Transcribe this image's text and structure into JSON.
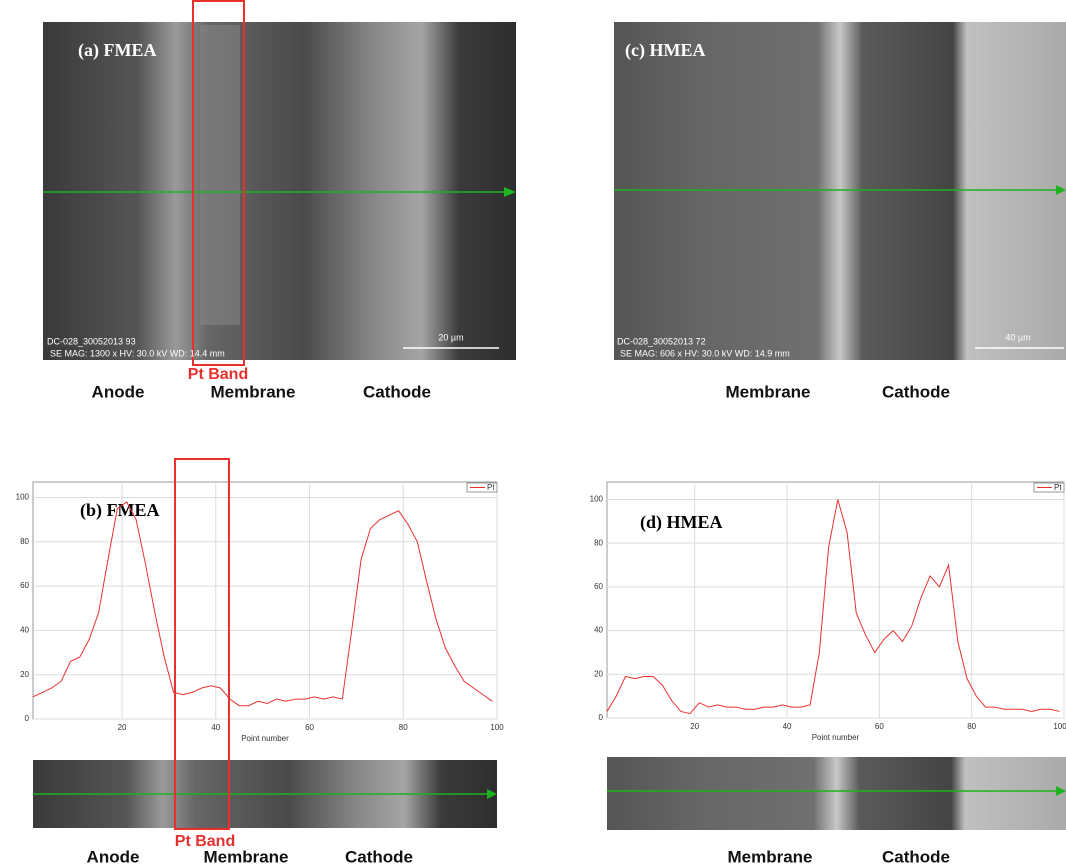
{
  "panels": [
    {
      "label": "(a) FMEA",
      "info": [
        "DC-028_30052013 93",
        "SE  MAG: 1300 x  HV: 30.0 kV  WD: 14.4 mm"
      ],
      "scale": "20 µm",
      "band": "Pt Band",
      "regions": [
        "Anode",
        "Membrane",
        "Cathode"
      ]
    },
    {
      "label": "(c) HMEA",
      "info": [
        "DC-028_30052013 72",
        "SE  MAG: 606 x  HV: 30.0 kV  WD: 14.9 mm"
      ],
      "scale": "40 µm",
      "regions": [
        "Membrane",
        "Cathode"
      ]
    }
  ],
  "chart_data": [
    {
      "type": "line",
      "title": "(b) FMEA",
      "x_label": "Point number",
      "x": [
        1,
        3,
        5,
        7,
        9,
        11,
        13,
        15,
        17,
        19,
        21,
        23,
        25,
        27,
        29,
        31,
        33,
        35,
        37,
        39,
        41,
        43,
        45,
        47,
        49,
        51,
        53,
        55,
        57,
        59,
        61,
        63,
        65,
        67,
        69,
        71,
        73,
        75,
        77,
        79,
        81,
        83,
        85,
        87,
        89,
        91,
        93,
        95,
        97,
        99
      ],
      "series": [
        {
          "name": "Pt",
          "color": "#e8312f",
          "values": [
            10,
            12,
            14,
            17,
            26,
            28,
            36,
            48,
            72,
            95,
            98,
            90,
            70,
            48,
            28,
            12,
            11,
            12,
            14,
            15,
            14,
            9,
            6,
            6,
            8,
            7,
            9,
            8,
            9,
            9,
            10,
            9,
            10,
            9,
            40,
            72,
            86,
            90,
            92,
            94,
            88,
            80,
            62,
            45,
            32,
            24,
            17,
            14,
            11,
            8
          ]
        }
      ],
      "xlim": [
        1,
        100
      ],
      "ylim": [
        0,
        107
      ],
      "xticks": [
        20,
        40,
        60,
        80,
        100
      ],
      "yticks": [
        0,
        20,
        40,
        60,
        80,
        100
      ],
      "grid": true,
      "band": "Pt Band",
      "regions": [
        "Anode",
        "Membrane",
        "Cathode"
      ]
    },
    {
      "type": "line",
      "title": "(d) HMEA",
      "x_label": "Point number",
      "x": [
        1,
        3,
        5,
        7,
        9,
        11,
        13,
        15,
        17,
        19,
        21,
        23,
        25,
        27,
        29,
        31,
        33,
        35,
        37,
        39,
        41,
        43,
        45,
        47,
        49,
        51,
        53,
        55,
        57,
        59,
        61,
        63,
        65,
        67,
        69,
        71,
        73,
        75,
        77,
        79,
        81,
        83,
        85,
        87,
        89,
        91,
        93,
        95,
        97,
        99
      ],
      "series": [
        {
          "name": "Pt",
          "color": "#e8312f",
          "values": [
            3,
            10,
            19,
            18,
            19,
            19,
            15,
            8,
            3,
            2,
            7,
            5,
            6,
            5,
            5,
            4,
            4,
            5,
            5,
            6,
            5,
            5,
            6,
            30,
            78,
            100,
            85,
            48,
            38,
            30,
            36,
            40,
            35,
            42,
            55,
            65,
            60,
            70,
            35,
            18,
            10,
            5,
            5,
            4,
            4,
            4,
            3,
            4,
            4,
            3
          ]
        }
      ],
      "xlim": [
        1,
        100
      ],
      "ylim": [
        0,
        108
      ],
      "xticks": [
        20,
        40,
        60,
        80,
        100
      ],
      "yticks": [
        0,
        20,
        40,
        60,
        80,
        100
      ],
      "grid": true,
      "regions": [
        "Membrane",
        "Cathode"
      ]
    }
  ]
}
